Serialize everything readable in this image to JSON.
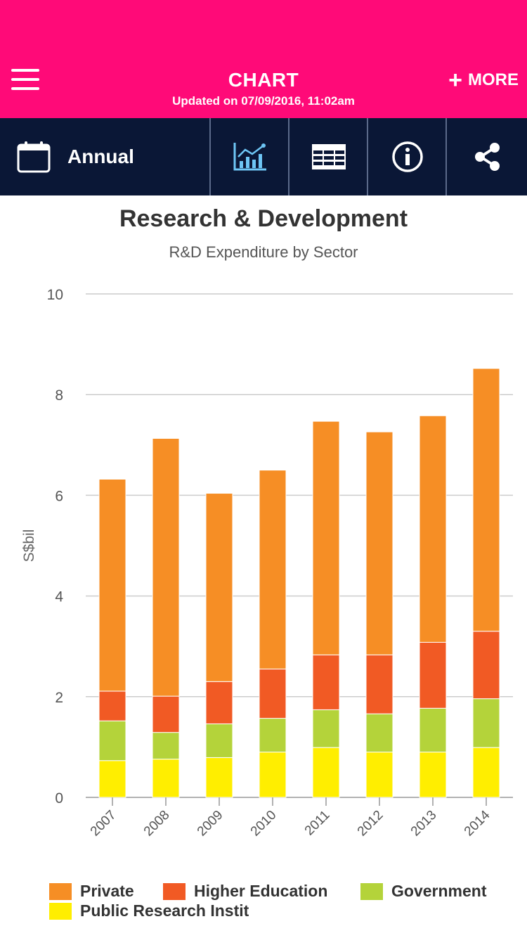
{
  "header": {
    "title": "CHART",
    "updated": "Updated on 07/09/2016, 11:02am",
    "more_label": "MORE",
    "more_icon": "plus-icon",
    "menu_icon": "hamburger-menu-icon"
  },
  "toolbar": {
    "period_label": "Annual",
    "period_icon": "calendar-icon",
    "tools": [
      {
        "name": "chart-icon",
        "active": true
      },
      {
        "name": "table-icon",
        "active": false
      },
      {
        "name": "info-icon",
        "active": false
      },
      {
        "name": "share-icon",
        "active": false
      }
    ]
  },
  "colors": {
    "header_bg": "#ff0a78",
    "toolbar_bg": "#0a1736",
    "active_tool": "#6ec6f5"
  },
  "chart_data": {
    "type": "bar",
    "stacked": true,
    "title": "Research & Development",
    "subtitle": "R&D Expenditure by Sector",
    "ylabel": "S$bil",
    "xlabel": "",
    "ylim": [
      0,
      10
    ],
    "yticks": [
      0,
      2,
      4,
      6,
      8,
      10
    ],
    "grid": true,
    "legend_position": "bottom",
    "categories": [
      "2007",
      "2008",
      "2009",
      "2010",
      "2011",
      "2012",
      "2013",
      "2014"
    ],
    "series": [
      {
        "name": "Public Research Instit",
        "color": "#ffee00",
        "values": [
          0.73,
          0.76,
          0.79,
          0.9,
          0.99,
          0.9,
          0.9,
          0.99
        ]
      },
      {
        "name": "Government",
        "color": "#b4d33a",
        "values": [
          0.79,
          0.53,
          0.67,
          0.67,
          0.75,
          0.76,
          0.87,
          0.97
        ]
      },
      {
        "name": "Higher Education",
        "color": "#f15a24",
        "values": [
          0.59,
          0.72,
          0.84,
          0.98,
          1.09,
          1.17,
          1.31,
          1.34
        ]
      },
      {
        "name": "Private",
        "color": "#f68e25",
        "values": [
          4.21,
          5.12,
          3.74,
          3.95,
          4.64,
          4.43,
          4.5,
          5.22
        ]
      }
    ],
    "legend_order": [
      "Private",
      "Higher Education",
      "Government",
      "Public Research Instit"
    ]
  }
}
